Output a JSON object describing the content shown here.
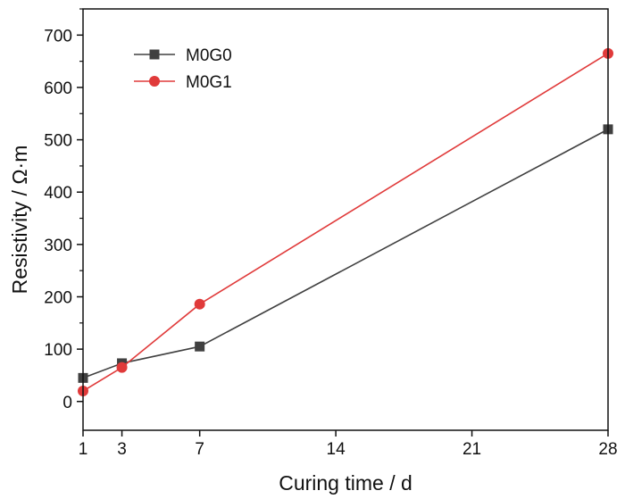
{
  "chart_data": {
    "type": "line",
    "title": "",
    "xlabel": "Curing time / d",
    "ylabel": "Resistivity / Ω·m",
    "x": [
      1,
      3,
      7,
      28
    ],
    "xticks": [
      1,
      3,
      7,
      14,
      21,
      28
    ],
    "xlim": [
      1,
      28
    ],
    "yticks": [
      0,
      100,
      200,
      300,
      400,
      500,
      600,
      700
    ],
    "ylim": [
      -55,
      750
    ],
    "grid": false,
    "legend_position": "top-left",
    "series": [
      {
        "name": "M0G0",
        "values": [
          45,
          73,
          105,
          520
        ],
        "color": "#404040",
        "marker": "square"
      },
      {
        "name": "M0G1",
        "values": [
          20,
          65,
          186,
          665
        ],
        "color": "#e03a3a",
        "marker": "circle"
      }
    ]
  }
}
